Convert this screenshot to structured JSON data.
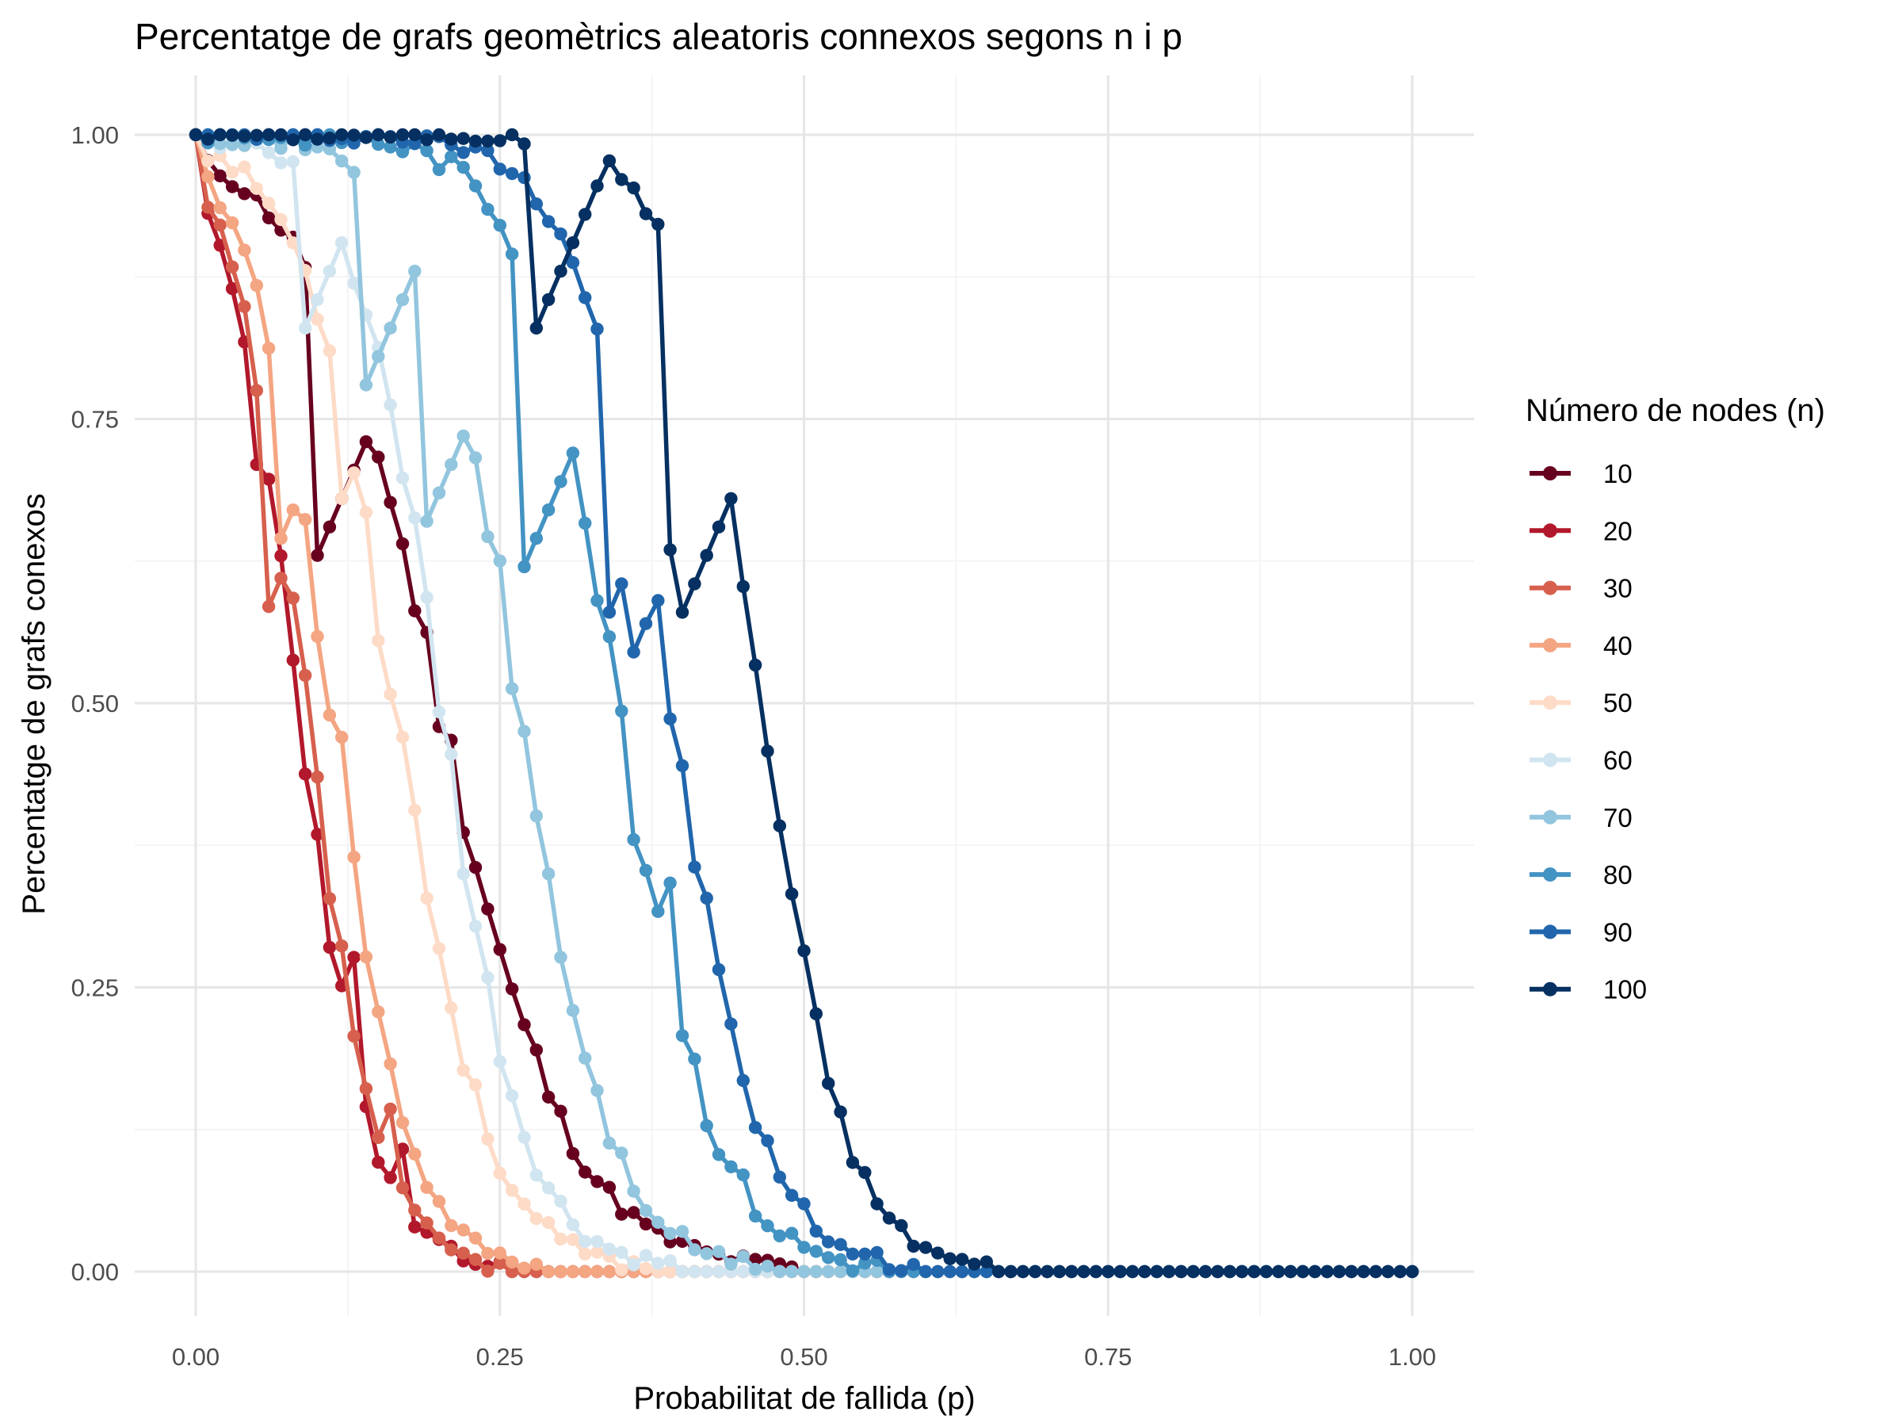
{
  "chart_data": {
    "type": "line",
    "title": "Percentatge de grafs geomètrics aleatoris connexos segons n i p",
    "xlabel": "Probabilitat de fallida (p)",
    "ylabel": "Percentatge de grafs conexos",
    "xlim": [
      0,
      1
    ],
    "ylim": [
      0,
      1
    ],
    "x_ticks": [
      "0.00",
      "0.25",
      "0.50",
      "0.75",
      "1.00"
    ],
    "y_ticks": [
      "0.00",
      "0.25",
      "0.50",
      "0.75",
      "1.00"
    ],
    "grid": true,
    "legend_title": "Número de nodes (n)",
    "legend_position": "right",
    "x_step": 0.01,
    "series": [
      {
        "name": "10",
        "color": "#67001f",
        "p50": 0.2,
        "k": 8.5,
        "jitter": 0.018,
        "seed": 11,
        "pins": [
          [
            0.1,
            0.63
          ],
          [
            0.28,
            0.195
          ]
        ]
      },
      {
        "name": "20",
        "color": "#b2182b",
        "p50": 0.085,
        "k": 15,
        "jitter": 0.02,
        "seed": 23,
        "pins": [
          [
            0.05,
            0.71
          ],
          [
            0.13,
            0.38
          ],
          [
            0.17,
            0.24
          ]
        ]
      },
      {
        "name": "30",
        "color": "#d6604d",
        "p50": 0.09,
        "k": 15,
        "jitter": 0.022,
        "seed": 37,
        "pins": [
          [
            0.06,
            0.585
          ],
          [
            0.05,
            0.775
          ],
          [
            0.16,
            0.23
          ]
        ]
      },
      {
        "name": "40",
        "color": "#f4a582",
        "p50": 0.11,
        "k": 14,
        "jitter": 0.018,
        "seed": 41,
        "pins": [
          [
            0.07,
            0.645
          ],
          [
            0.12,
            0.47
          ]
        ]
      },
      {
        "name": "50",
        "color": "#fddbc7",
        "p50": 0.165,
        "k": 12,
        "jitter": 0.02,
        "seed": 53,
        "pins": [
          [
            0.12,
            0.68
          ],
          [
            0.15,
            0.555
          ]
        ]
      },
      {
        "name": "60",
        "color": "#d1e5f0",
        "p50": 0.2,
        "k": 13,
        "jitter": 0.022,
        "seed": 61,
        "pins": [
          [
            0.09,
            0.83
          ],
          [
            0.21,
            0.455
          ]
        ]
      },
      {
        "name": "70",
        "color": "#92c5de",
        "p50": 0.265,
        "k": 12,
        "jitter": 0.022,
        "seed": 71,
        "pins": [
          [
            0.14,
            0.78
          ],
          [
            0.19,
            0.66
          ]
        ]
      },
      {
        "name": "80",
        "color": "#4393c3",
        "p50": 0.35,
        "k": 11.5,
        "jitter": 0.028,
        "seed": 83,
        "pins": [
          [
            0.27,
            0.62
          ],
          [
            0.36,
            0.38
          ],
          [
            0.39,
            0.39
          ]
        ]
      },
      {
        "name": "90",
        "color": "#2166ac",
        "p50": 0.39,
        "k": 12,
        "jitter": 0.022,
        "seed": 97,
        "pins": [
          [
            0.34,
            0.58
          ],
          [
            0.36,
            0.545
          ]
        ]
      },
      {
        "name": "100",
        "color": "#053061",
        "p50": 0.465,
        "k": 13,
        "jitter": 0.018,
        "seed": 101,
        "pins": [
          [
            0.28,
            0.83
          ],
          [
            0.39,
            0.635
          ],
          [
            0.4,
            0.58
          ]
        ]
      }
    ]
  }
}
